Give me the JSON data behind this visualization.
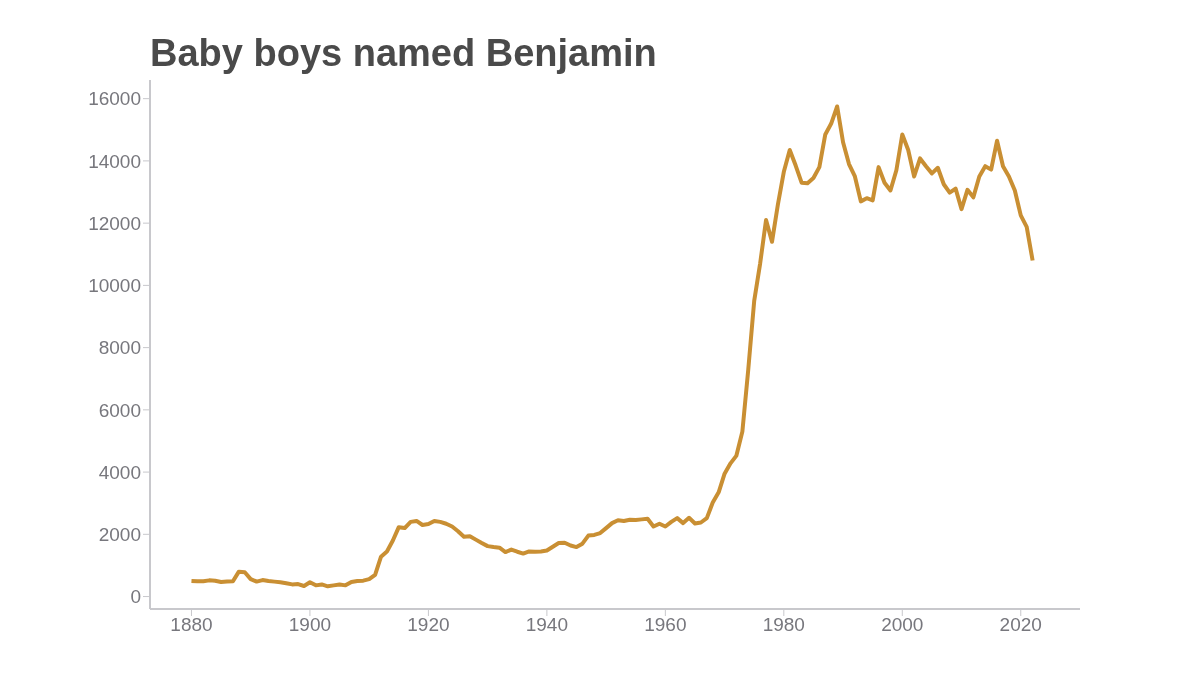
{
  "chart_data": {
    "type": "line",
    "title": "Baby boys named Benjamin",
    "x": [
      1880,
      1881,
      1882,
      1883,
      1884,
      1885,
      1886,
      1887,
      1888,
      1889,
      1890,
      1891,
      1892,
      1893,
      1894,
      1895,
      1896,
      1897,
      1898,
      1899,
      1900,
      1901,
      1902,
      1903,
      1904,
      1905,
      1906,
      1907,
      1908,
      1909,
      1910,
      1911,
      1912,
      1913,
      1914,
      1915,
      1916,
      1917,
      1918,
      1919,
      1920,
      1921,
      1922,
      1923,
      1924,
      1925,
      1926,
      1927,
      1928,
      1929,
      1930,
      1931,
      1932,
      1933,
      1934,
      1935,
      1936,
      1937,
      1938,
      1939,
      1940,
      1941,
      1942,
      1943,
      1944,
      1945,
      1946,
      1947,
      1948,
      1949,
      1950,
      1951,
      1952,
      1953,
      1954,
      1955,
      1956,
      1957,
      1958,
      1959,
      1960,
      1961,
      1962,
      1963,
      1964,
      1965,
      1966,
      1967,
      1968,
      1969,
      1970,
      1971,
      1972,
      1973,
      1974,
      1975,
      1976,
      1977,
      1978,
      1979,
      1980,
      1981,
      1982,
      1983,
      1984,
      1985,
      1986,
      1987,
      1988,
      1989,
      1990,
      1991,
      1992,
      1993,
      1994,
      1995,
      1996,
      1997,
      1998,
      1999,
      2000,
      2001,
      2002,
      2003,
      2004,
      2005,
      2006,
      2007,
      2008,
      2009,
      2010,
      2011,
      2012,
      2013,
      2014,
      2015,
      2016,
      2017,
      2018,
      2019,
      2020,
      2021,
      2022
    ],
    "series": [
      {
        "color": "#c98f33",
        "values": [
          500,
          490,
          490,
          520,
          510,
          470,
          480,
          490,
          800,
          780,
          560,
          480,
          530,
          500,
          480,
          460,
          430,
          390,
          400,
          340,
          460,
          360,
          390,
          330,
          360,
          390,
          360,
          470,
          500,
          510,
          560,
          700,
          1280,
          1450,
          1800,
          2230,
          2200,
          2400,
          2430,
          2300,
          2330,
          2430,
          2400,
          2340,
          2250,
          2100,
          1920,
          1940,
          1830,
          1720,
          1620,
          1590,
          1570,
          1430,
          1510,
          1440,
          1380,
          1450,
          1440,
          1450,
          1480,
          1600,
          1720,
          1730,
          1640,
          1590,
          1700,
          1960,
          1980,
          2040,
          2200,
          2360,
          2450,
          2430,
          2470,
          2460,
          2480,
          2500,
          2250,
          2340,
          2250,
          2400,
          2520,
          2360,
          2530,
          2350,
          2380,
          2520,
          3020,
          3350,
          3950,
          4280,
          4530,
          5300,
          7300,
          9500,
          10700,
          12100,
          11400,
          12600,
          13650,
          14350,
          13850,
          13300,
          13280,
          13450,
          13800,
          14850,
          15200,
          15750,
          14600,
          13900,
          13500,
          12700,
          12800,
          12730,
          13800,
          13300,
          13050,
          13700,
          14850,
          14350,
          13500,
          14080,
          13830,
          13600,
          13780,
          13250,
          12980,
          13110,
          12450,
          13070,
          12830,
          13500,
          13830,
          13720,
          14650,
          13830,
          13500,
          13050,
          12250,
          11880,
          10800
        ]
      }
    ],
    "xlim": [
      1873,
      2030
    ],
    "xticks": [
      1880,
      1900,
      1920,
      1940,
      1960,
      1980,
      2000,
      2020
    ],
    "ylim": [
      -400,
      16600
    ],
    "yticks": [
      0,
      2000,
      4000,
      6000,
      8000,
      10000,
      12000,
      14000,
      16000
    ],
    "grid": false,
    "legend": false,
    "marker": "none",
    "line_style": "solid"
  }
}
